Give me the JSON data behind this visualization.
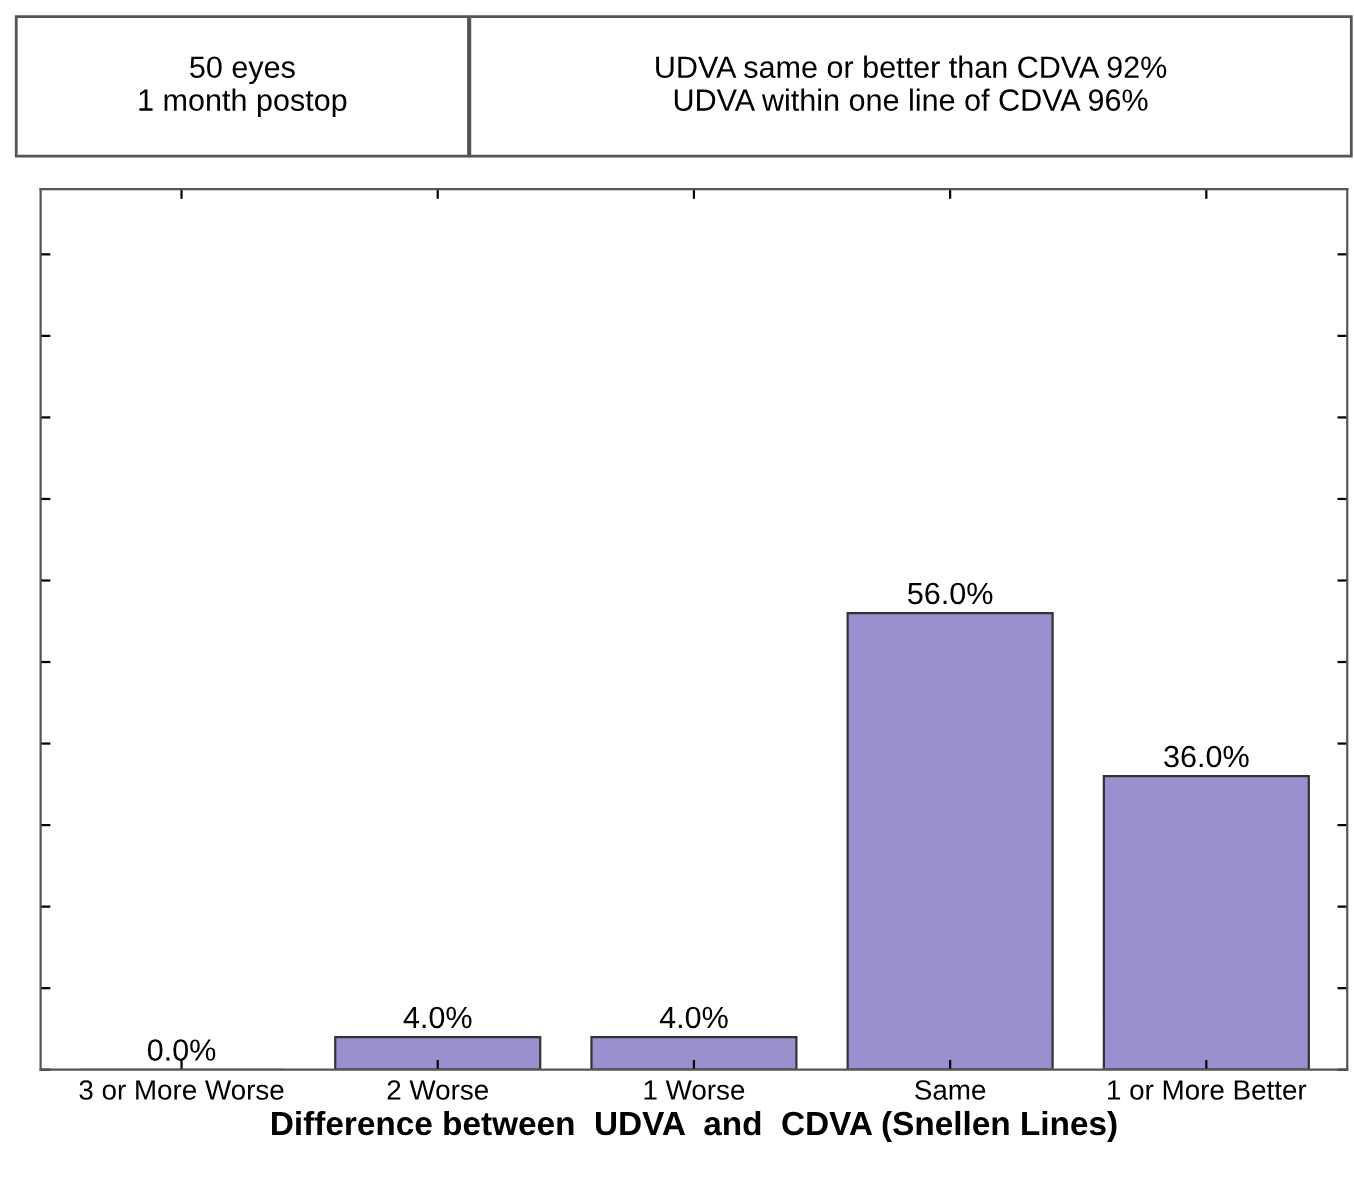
{
  "chart_data": {
    "type": "bar",
    "xlabel": "Difference between  UDVA  and  CDVA (Snellen Lines)",
    "categories": [
      "3 or More Worse",
      "2 Worse",
      "1 Worse",
      "Same",
      "1 or More Better"
    ],
    "values": [
      0.0,
      4.0,
      4.0,
      56.0,
      36.0
    ],
    "color": "#9b8fcf",
    "value_labels": [
      "0.0%",
      "4.0%",
      "4.0%",
      "56.0%",
      "36.0%"
    ],
    "ylim": [
      0,
      108
    ],
    "yticks": [
      {
        "value": 0,
        "label": null
      },
      {
        "value": 10,
        "label": null
      },
      {
        "value": 20,
        "label": null
      },
      {
        "value": 30,
        "label": null
      },
      {
        "value": 40,
        "label": null
      },
      {
        "value": 50,
        "label": null
      },
      {
        "value": 60,
        "label": null
      },
      {
        "value": 70,
        "label": null
      },
      {
        "value": 80,
        "label": null
      },
      {
        "value": 90,
        "label": null
      },
      {
        "value": 100,
        "label": null
      }
    ],
    "tick_labels": "x",
    "grid": false,
    "legend": false,
    "annotations": [
      "50 eyes\n1 month postop",
      "UDVA same or better than CDVA 92%\nUDVA within one line of CDVA 96%"
    ]
  }
}
